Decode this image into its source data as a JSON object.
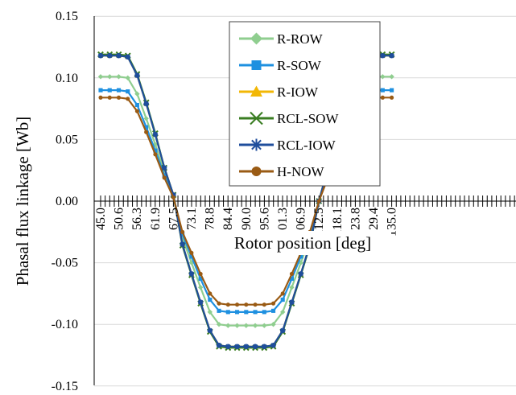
{
  "chart_data": {
    "type": "line",
    "title": "",
    "xlabel": "Rotor position [deg]",
    "ylabel": "Phasal flux linkage [Wb]",
    "xlim": [
      45.0,
      135.0
    ],
    "ylim": [
      -0.15,
      0.15
    ],
    "yticks": [
      "0.15",
      "0.10",
      "0.05",
      "0.00",
      "-0.05",
      "-0.10",
      "-0.15"
    ],
    "xticks": [
      "45.0",
      "50.6",
      "56.3",
      "61.9",
      "67.5",
      "73.1",
      "78.8",
      "84.4",
      "90.0",
      "95.6",
      "101.3",
      "106.9",
      "112.5",
      "118.1",
      "123.8",
      "129.4",
      "135.0"
    ],
    "grid": "horizontal",
    "legend_position": "top-center",
    "series": [
      {
        "name": "R-ROW",
        "color": "#8fce8f",
        "marker": "diamond",
        "amplitude": 0.101,
        "x": [
          45.0,
          47.8,
          50.6,
          53.4,
          56.3,
          59.1,
          61.9,
          64.7,
          67.5,
          70.3,
          73.1,
          75.9,
          78.8,
          81.6,
          84.4,
          87.2,
          90.0,
          92.8,
          95.6,
          98.4,
          101.3,
          104.1,
          106.9,
          109.7,
          112.5,
          115.3,
          118.1,
          120.9,
          123.8,
          126.6,
          129.4,
          132.2,
          135.0
        ],
        "y": [
          0.101,
          0.101,
          0.101,
          0.1,
          0.087,
          0.067,
          0.046,
          0.023,
          0.004,
          -0.03,
          -0.05,
          -0.07,
          -0.09,
          -0.1,
          -0.101,
          -0.101,
          -0.101,
          -0.101,
          -0.101,
          -0.1,
          -0.09,
          -0.07,
          -0.05,
          -0.03,
          0.0,
          0.023,
          0.046,
          0.067,
          0.087,
          0.1,
          0.101,
          0.101,
          0.101
        ]
      },
      {
        "name": "R-SOW",
        "color": "#1e90e0",
        "marker": "square",
        "amplitude": 0.09,
        "x": [
          45.0,
          47.8,
          50.6,
          53.4,
          56.3,
          59.1,
          61.9,
          64.7,
          67.5,
          70.3,
          73.1,
          75.9,
          78.8,
          81.6,
          84.4,
          87.2,
          90.0,
          92.8,
          95.6,
          98.4,
          101.3,
          104.1,
          106.9,
          109.7,
          112.5,
          115.3,
          118.1,
          120.9,
          123.8,
          126.6,
          129.4,
          132.2,
          135.0
        ],
        "y": [
          0.09,
          0.09,
          0.09,
          0.089,
          0.078,
          0.06,
          0.041,
          0.021,
          0.004,
          -0.027,
          -0.045,
          -0.063,
          -0.08,
          -0.089,
          -0.09,
          -0.09,
          -0.09,
          -0.09,
          -0.09,
          -0.089,
          -0.08,
          -0.063,
          -0.045,
          -0.027,
          0.0,
          0.021,
          0.041,
          0.06,
          0.078,
          0.089,
          0.09,
          0.09,
          0.09
        ]
      },
      {
        "name": "R-IOW",
        "color": "#f2b705",
        "marker": "triangle",
        "amplitude": 0.118,
        "x": [
          45.0,
          47.8,
          50.6,
          53.4,
          56.3,
          59.1,
          61.9,
          64.7,
          67.5,
          70.3,
          73.1,
          75.9,
          78.8,
          81.6,
          84.4,
          87.2,
          90.0,
          92.8,
          95.6,
          98.4,
          101.3,
          104.1,
          106.9,
          109.7,
          112.5,
          115.3,
          118.1,
          120.9,
          123.8,
          126.6,
          129.4,
          132.2,
          135.0
        ],
        "y": [
          0.118,
          0.118,
          0.118,
          0.117,
          0.102,
          0.079,
          0.054,
          0.027,
          0.005,
          -0.035,
          -0.059,
          -0.082,
          -0.105,
          -0.117,
          -0.118,
          -0.118,
          -0.118,
          -0.118,
          -0.118,
          -0.117,
          -0.105,
          -0.082,
          -0.059,
          -0.035,
          0.0,
          0.027,
          0.054,
          0.079,
          0.102,
          0.117,
          0.118,
          0.118,
          0.118
        ]
      },
      {
        "name": "RCL-SOW",
        "color": "#3a7d22",
        "marker": "x",
        "amplitude": 0.119,
        "x": [
          45.0,
          47.8,
          50.6,
          53.4,
          56.3,
          59.1,
          61.9,
          64.7,
          67.5,
          70.3,
          73.1,
          75.9,
          78.8,
          81.6,
          84.4,
          87.2,
          90.0,
          92.8,
          95.6,
          98.4,
          101.3,
          104.1,
          106.9,
          109.7,
          112.5,
          115.3,
          118.1,
          120.9,
          123.8,
          126.6,
          129.4,
          132.2,
          135.0
        ],
        "y": [
          0.119,
          0.119,
          0.119,
          0.118,
          0.103,
          0.08,
          0.055,
          0.027,
          0.005,
          -0.036,
          -0.06,
          -0.083,
          -0.106,
          -0.118,
          -0.119,
          -0.119,
          -0.119,
          -0.119,
          -0.119,
          -0.118,
          -0.106,
          -0.083,
          -0.06,
          -0.036,
          0.0,
          0.027,
          0.055,
          0.08,
          0.103,
          0.118,
          0.119,
          0.119,
          0.119
        ]
      },
      {
        "name": "RCL-IOW",
        "color": "#1f4e9c",
        "marker": "star",
        "amplitude": 0.118,
        "x": [
          45.0,
          47.8,
          50.6,
          53.4,
          56.3,
          59.1,
          61.9,
          64.7,
          67.5,
          70.3,
          73.1,
          75.9,
          78.8,
          81.6,
          84.4,
          87.2,
          90.0,
          92.8,
          95.6,
          98.4,
          101.3,
          104.1,
          106.9,
          109.7,
          112.5,
          115.3,
          118.1,
          120.9,
          123.8,
          126.6,
          129.4,
          132.2,
          135.0
        ],
        "y": [
          0.118,
          0.118,
          0.118,
          0.117,
          0.102,
          0.079,
          0.054,
          0.027,
          0.005,
          -0.035,
          -0.059,
          -0.082,
          -0.105,
          -0.117,
          -0.118,
          -0.118,
          -0.118,
          -0.118,
          -0.118,
          -0.117,
          -0.105,
          -0.082,
          -0.059,
          -0.035,
          0.0,
          0.027,
          0.054,
          0.079,
          0.102,
          0.117,
          0.118,
          0.118,
          0.118
        ]
      },
      {
        "name": "H-NOW",
        "color": "#9a5b14",
        "marker": "circle",
        "amplitude": 0.084,
        "x": [
          45.0,
          47.8,
          50.6,
          53.4,
          56.3,
          59.1,
          61.9,
          64.7,
          67.5,
          70.3,
          73.1,
          75.9,
          78.8,
          81.6,
          84.4,
          87.2,
          90.0,
          92.8,
          95.6,
          98.4,
          101.3,
          104.1,
          106.9,
          109.7,
          112.5,
          115.3,
          118.1,
          120.9,
          123.8,
          126.6,
          129.4,
          132.2,
          135.0
        ],
        "y": [
          0.084,
          0.084,
          0.084,
          0.083,
          0.073,
          0.056,
          0.038,
          0.019,
          0.003,
          -0.025,
          -0.042,
          -0.059,
          -0.075,
          -0.083,
          -0.084,
          -0.084,
          -0.084,
          -0.084,
          -0.084,
          -0.083,
          -0.075,
          -0.059,
          -0.042,
          -0.025,
          0.0,
          0.019,
          0.038,
          0.056,
          0.073,
          0.083,
          0.084,
          0.084,
          0.084
        ]
      }
    ]
  }
}
